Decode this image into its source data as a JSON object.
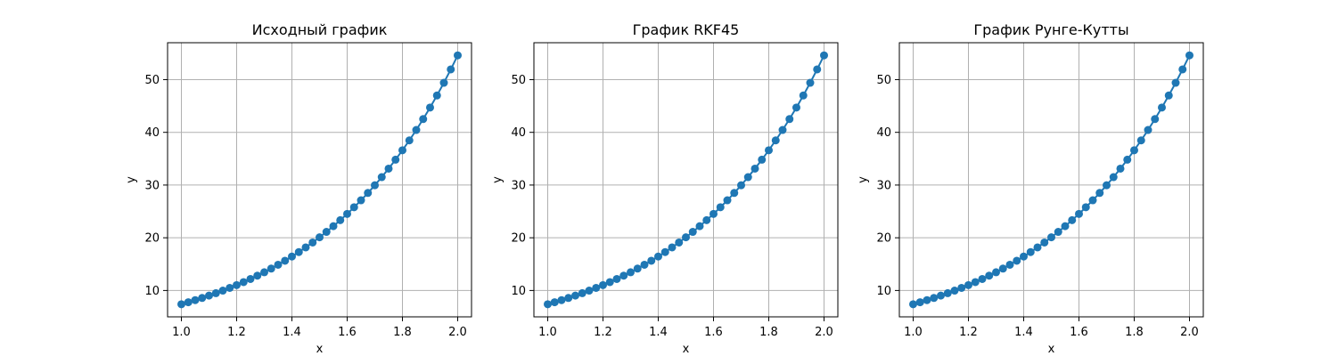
{
  "chart_data": [
    {
      "type": "line",
      "title": "Исходный график",
      "xlabel": "x",
      "ylabel": "y",
      "xlim": [
        0.95,
        2.05
      ],
      "ylim": [
        5.0,
        57.0
      ],
      "xticks": [
        "1.0",
        "1.2",
        "1.4",
        "1.6",
        "1.8",
        "2.0"
      ],
      "yticks": [
        "10",
        "20",
        "30",
        "40",
        "50"
      ],
      "grid": true,
      "color": "#1f77b4",
      "marker": "circle",
      "series": [
        {
          "x": [
            1.0,
            1.025,
            1.05,
            1.075,
            1.1,
            1.125,
            1.15,
            1.175,
            1.2,
            1.225,
            1.25,
            1.275,
            1.3,
            1.325,
            1.35,
            1.375,
            1.4,
            1.425,
            1.45,
            1.475,
            1.5,
            1.525,
            1.55,
            1.575,
            1.6,
            1.625,
            1.65,
            1.675,
            1.7,
            1.725,
            1.75,
            1.775,
            1.8,
            1.825,
            1.85,
            1.875,
            1.9,
            1.925,
            1.95,
            1.975,
            2.0
          ],
          "y": [
            7.39,
            7.77,
            8.17,
            8.58,
            9.03,
            9.49,
            9.97,
            10.49,
            11.02,
            11.59,
            12.18,
            12.81,
            13.46,
            14.15,
            14.88,
            15.64,
            16.44,
            17.29,
            18.17,
            19.1,
            20.09,
            21.12,
            22.2,
            23.34,
            24.53,
            25.79,
            27.11,
            28.5,
            29.96,
            31.5,
            33.12,
            34.81,
            36.6,
            38.47,
            40.45,
            42.52,
            44.7,
            46.99,
            49.4,
            51.94,
            54.6
          ]
        }
      ]
    },
    {
      "type": "line",
      "title": "График RKF45",
      "xlabel": "x",
      "ylabel": "y",
      "xlim": [
        0.95,
        2.05
      ],
      "ylim": [
        5.0,
        57.0
      ],
      "xticks": [
        "1.0",
        "1.2",
        "1.4",
        "1.6",
        "1.8",
        "2.0"
      ],
      "yticks": [
        "10",
        "20",
        "30",
        "40",
        "50"
      ],
      "grid": true,
      "color": "#1f77b4",
      "marker": "circle",
      "series": [
        {
          "x": [
            1.0,
            1.025,
            1.05,
            1.075,
            1.1,
            1.125,
            1.15,
            1.175,
            1.2,
            1.225,
            1.25,
            1.275,
            1.3,
            1.325,
            1.35,
            1.375,
            1.4,
            1.425,
            1.45,
            1.475,
            1.5,
            1.525,
            1.55,
            1.575,
            1.6,
            1.625,
            1.65,
            1.675,
            1.7,
            1.725,
            1.75,
            1.775,
            1.8,
            1.825,
            1.85,
            1.875,
            1.9,
            1.925,
            1.95,
            1.975,
            2.0
          ],
          "y": [
            7.39,
            7.77,
            8.17,
            8.58,
            9.03,
            9.49,
            9.97,
            10.49,
            11.02,
            11.59,
            12.18,
            12.81,
            13.46,
            14.15,
            14.88,
            15.64,
            16.44,
            17.29,
            18.17,
            19.1,
            20.09,
            21.12,
            22.2,
            23.34,
            24.53,
            25.79,
            27.11,
            28.5,
            29.96,
            31.5,
            33.12,
            34.81,
            36.6,
            38.47,
            40.45,
            42.52,
            44.7,
            46.99,
            49.4,
            51.94,
            54.6
          ]
        }
      ]
    },
    {
      "type": "line",
      "title": "График Рунге-Кутты",
      "xlabel": "x",
      "ylabel": "y",
      "xlim": [
        0.95,
        2.05
      ],
      "ylim": [
        5.0,
        57.0
      ],
      "xticks": [
        "1.0",
        "1.2",
        "1.4",
        "1.6",
        "1.8",
        "2.0"
      ],
      "yticks": [
        "10",
        "20",
        "30",
        "40",
        "50"
      ],
      "grid": true,
      "color": "#1f77b4",
      "marker": "circle",
      "series": [
        {
          "x": [
            1.0,
            1.025,
            1.05,
            1.075,
            1.1,
            1.125,
            1.15,
            1.175,
            1.2,
            1.225,
            1.25,
            1.275,
            1.3,
            1.325,
            1.35,
            1.375,
            1.4,
            1.425,
            1.45,
            1.475,
            1.5,
            1.525,
            1.55,
            1.575,
            1.6,
            1.625,
            1.65,
            1.675,
            1.7,
            1.725,
            1.75,
            1.775,
            1.8,
            1.825,
            1.85,
            1.875,
            1.9,
            1.925,
            1.95,
            1.975,
            2.0
          ],
          "y": [
            7.39,
            7.77,
            8.17,
            8.58,
            9.03,
            9.49,
            9.97,
            10.49,
            11.02,
            11.59,
            12.18,
            12.81,
            13.46,
            14.15,
            14.88,
            15.64,
            16.44,
            17.29,
            18.17,
            19.1,
            20.09,
            21.12,
            22.2,
            23.34,
            24.53,
            25.79,
            27.11,
            28.5,
            29.96,
            31.5,
            33.12,
            34.81,
            36.6,
            38.47,
            40.45,
            42.52,
            44.7,
            46.99,
            49.4,
            51.94,
            54.6
          ]
        }
      ]
    }
  ]
}
